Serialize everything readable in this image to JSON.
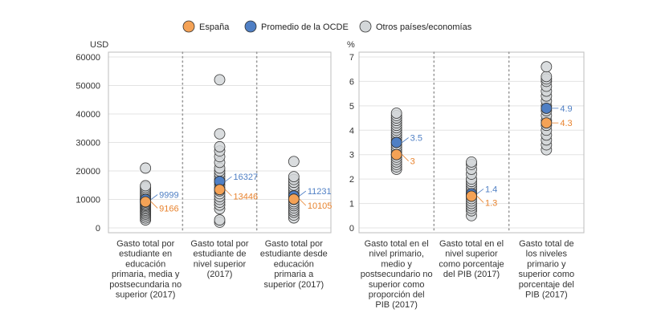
{
  "legend": [
    {
      "label": "España",
      "color": "#f4a256"
    },
    {
      "label": "Promedio de la OCDE",
      "color": "#4f7fc4"
    },
    {
      "label": "Otros países/economías",
      "color": "#d3d7d9"
    }
  ],
  "chart_data": [
    {
      "type": "scatter",
      "unit_label": "USD",
      "ylim": [
        0,
        60000
      ],
      "yticks": [
        0,
        10000,
        20000,
        30000,
        40000,
        50000,
        60000
      ],
      "grid": true,
      "categories": [
        [
          "Gasto total por",
          "estudiante en",
          "educación",
          "primaria, media y",
          "postsecundaria no",
          "superior (2017)"
        ],
        [
          "Gasto total por",
          "estudiante de",
          "nivel superior",
          "(2017)"
        ],
        [
          "Gasto total por",
          "estudiante desde",
          "educación",
          "primaria a",
          "superior (2017)"
        ]
      ],
      "series": [
        {
          "name": "Otros países/economías",
          "values": [
            [
              2800,
              3500,
              4200,
              4800,
              5300,
              5800,
              6200,
              6700,
              7100,
              7500,
              7900,
              8200,
              8600,
              9000,
              9400,
              9800,
              10200,
              10700,
              11200,
              11800,
              12400,
              13000,
              13600,
              14200,
              14800,
              21000
            ],
            [
              2000,
              2800,
              6700,
              8000,
              9000,
              10000,
              11000,
              12000,
              13000,
              14000,
              15000,
              16000,
              17000,
              18000,
              19000,
              20000,
              21000,
              23000,
              25000,
              27000,
              28500,
              33000,
              52000
            ],
            [
              3500,
              4500,
              5500,
              6200,
              7000,
              7800,
              8500,
              9200,
              10000,
              10800,
              11600,
              12400,
              13200,
              14000,
              15000,
              16000,
              17000,
              18000,
              23300
            ]
          ]
        },
        {
          "name": "Promedio de la OCDE",
          "values": [
            9999,
            16327,
            11231
          ]
        },
        {
          "name": "España",
          "values": [
            9166,
            13446,
            10105
          ]
        }
      ],
      "data_labels": {
        "Promedio de la OCDE": [
          "9999",
          "16327",
          "11231"
        ],
        "España": [
          "9166",
          "13446",
          "10105"
        ]
      }
    },
    {
      "type": "scatter",
      "unit_label": "%",
      "ylim": [
        0,
        7
      ],
      "yticks": [
        0,
        1,
        2,
        3,
        4,
        5,
        6,
        7
      ],
      "grid": true,
      "categories": [
        [
          "Gasto total en el",
          "nivel primario,",
          "medio y",
          "postsecundario no",
          "superior como",
          "proporción del",
          "PIB (2017)"
        ],
        [
          "Gasto total en el",
          "nivel superior",
          "como porcentaje",
          "del PIB (2017)"
        ],
        [
          "Gasto total de",
          "los niveles",
          "primario y",
          "superior como",
          "porcentaje del",
          "PIB (2017)"
        ]
      ],
      "series": [
        {
          "name": "Otros países/economías",
          "values": [
            [
              2.4,
              2.5,
              2.6,
              2.7,
              2.8,
              2.9,
              3.0,
              3.1,
              3.2,
              3.3,
              3.4,
              3.5,
              3.6,
              3.7,
              3.8,
              3.9,
              4.0,
              4.1,
              4.2,
              4.3,
              4.4,
              4.5,
              4.6,
              4.7
            ],
            [
              0.5,
              0.7,
              0.8,
              0.9,
              1.0,
              1.1,
              1.2,
              1.3,
              1.4,
              1.5,
              1.6,
              1.7,
              1.8,
              1.9,
              2.0,
              2.2,
              2.4,
              2.6,
              2.7
            ],
            [
              3.2,
              3.4,
              3.6,
              3.8,
              4.0,
              4.2,
              4.4,
              4.6,
              4.8,
              5.0,
              5.2,
              5.4,
              5.6,
              5.8,
              6.0,
              6.1,
              6.2,
              6.6
            ]
          ]
        },
        {
          "name": "Promedio de la OCDE",
          "values": [
            3.5,
            1.4,
            4.9
          ]
        },
        {
          "name": "España",
          "values": [
            3.0,
            1.3,
            4.3
          ]
        }
      ],
      "data_labels": {
        "Promedio de la OCDE": [
          "3.5",
          "1.4",
          "4.9"
        ],
        "España": [
          "3",
          "1.3",
          "4.3"
        ]
      }
    }
  ]
}
